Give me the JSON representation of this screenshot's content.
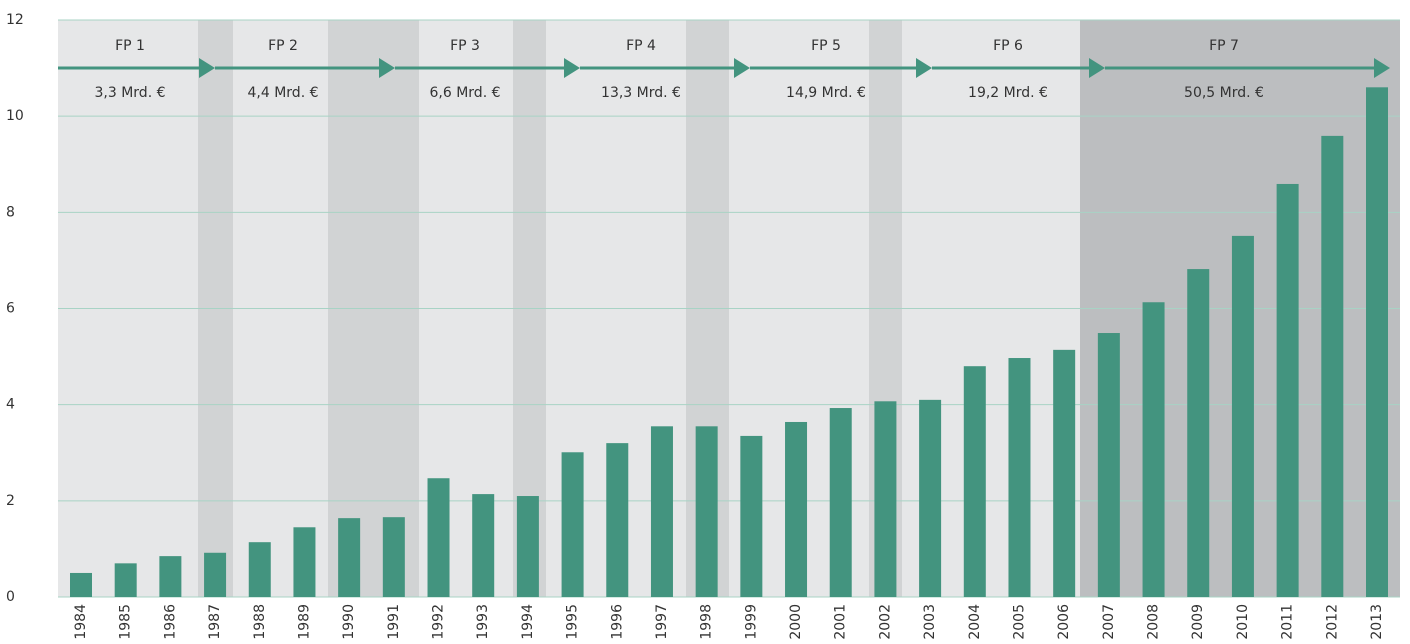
{
  "chart_data": {
    "type": "bar",
    "categories": [
      "1984",
      "1985",
      "1986",
      "1987",
      "1988",
      "1989",
      "1990",
      "1991",
      "1992",
      "1993",
      "1994",
      "1995",
      "1996",
      "1997",
      "1998",
      "1999",
      "2000",
      "2001",
      "2002",
      "2003",
      "2004",
      "2005",
      "2006",
      "2007",
      "2008",
      "2009",
      "2010",
      "2011",
      "2012",
      "2013"
    ],
    "values": [
      0.5,
      0.7,
      0.85,
      0.92,
      1.14,
      1.45,
      1.64,
      1.66,
      2.47,
      2.14,
      2.1,
      3.01,
      3.2,
      3.55,
      3.55,
      3.35,
      3.64,
      3.93,
      4.07,
      4.1,
      4.8,
      4.97,
      5.14,
      5.49,
      6.13,
      6.82,
      7.51,
      8.59,
      9.59,
      10.6
    ],
    "color": "#43947f",
    "ylim": [
      0,
      12
    ],
    "yticks": [
      0,
      2,
      4,
      6,
      8,
      10,
      12
    ],
    "grid": true,
    "programmes": [
      {
        "name": "FP 1",
        "budget": "3,3 Mrd. €"
      },
      {
        "name": "FP 2",
        "budget": "4,4 Mrd. €"
      },
      {
        "name": "FP 3",
        "budget": "6,6 Mrd. €"
      },
      {
        "name": "FP 4",
        "budget": "13,3 Mrd. €"
      },
      {
        "name": "FP 5",
        "budget": "14,9 Mrd. €"
      },
      {
        "name": "FP 6",
        "budget": "19,2 Mrd. €"
      },
      {
        "name": "FP 7",
        "budget": "50,5 Mrd. €"
      }
    ]
  }
}
